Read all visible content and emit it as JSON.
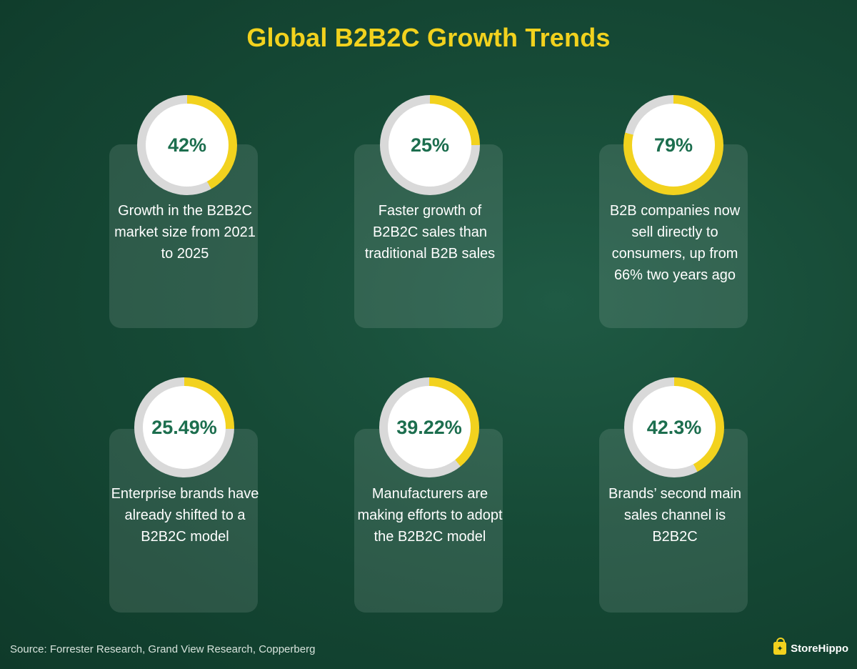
{
  "title": "Global B2B2C Growth Trends",
  "colors": {
    "accent": "#f2d21e",
    "ring_track": "#d9d9d9",
    "value_text": "#1c6e4e"
  },
  "stats": [
    {
      "value": "42%",
      "fraction": 0.42,
      "description": "Growth in the B2B2C market size from 2021 to 2025"
    },
    {
      "value": "25%",
      "fraction": 0.25,
      "description": "Faster growth of B2B2C sales than traditional B2B sales"
    },
    {
      "value": "79%",
      "fraction": 0.79,
      "description": "B2B companies now sell directly to consumers, up from 66% two years ago"
    },
    {
      "value": "25.49%",
      "fraction": 0.2549,
      "description": "Enterprise brands have already shifted to a B2B2C model"
    },
    {
      "value": "39.22%",
      "fraction": 0.3922,
      "description": "Manufacturers are making efforts to adopt the B2B2C model"
    },
    {
      "value": "42.3%",
      "fraction": 0.423,
      "description": "Brands’ second main sales channel is B2B2C"
    }
  ],
  "source": "Source: Forrester Research, Grand View Research, Copperberg",
  "brand": {
    "name": "StoreHippo",
    "icon": "shopping-bag-icon"
  }
}
